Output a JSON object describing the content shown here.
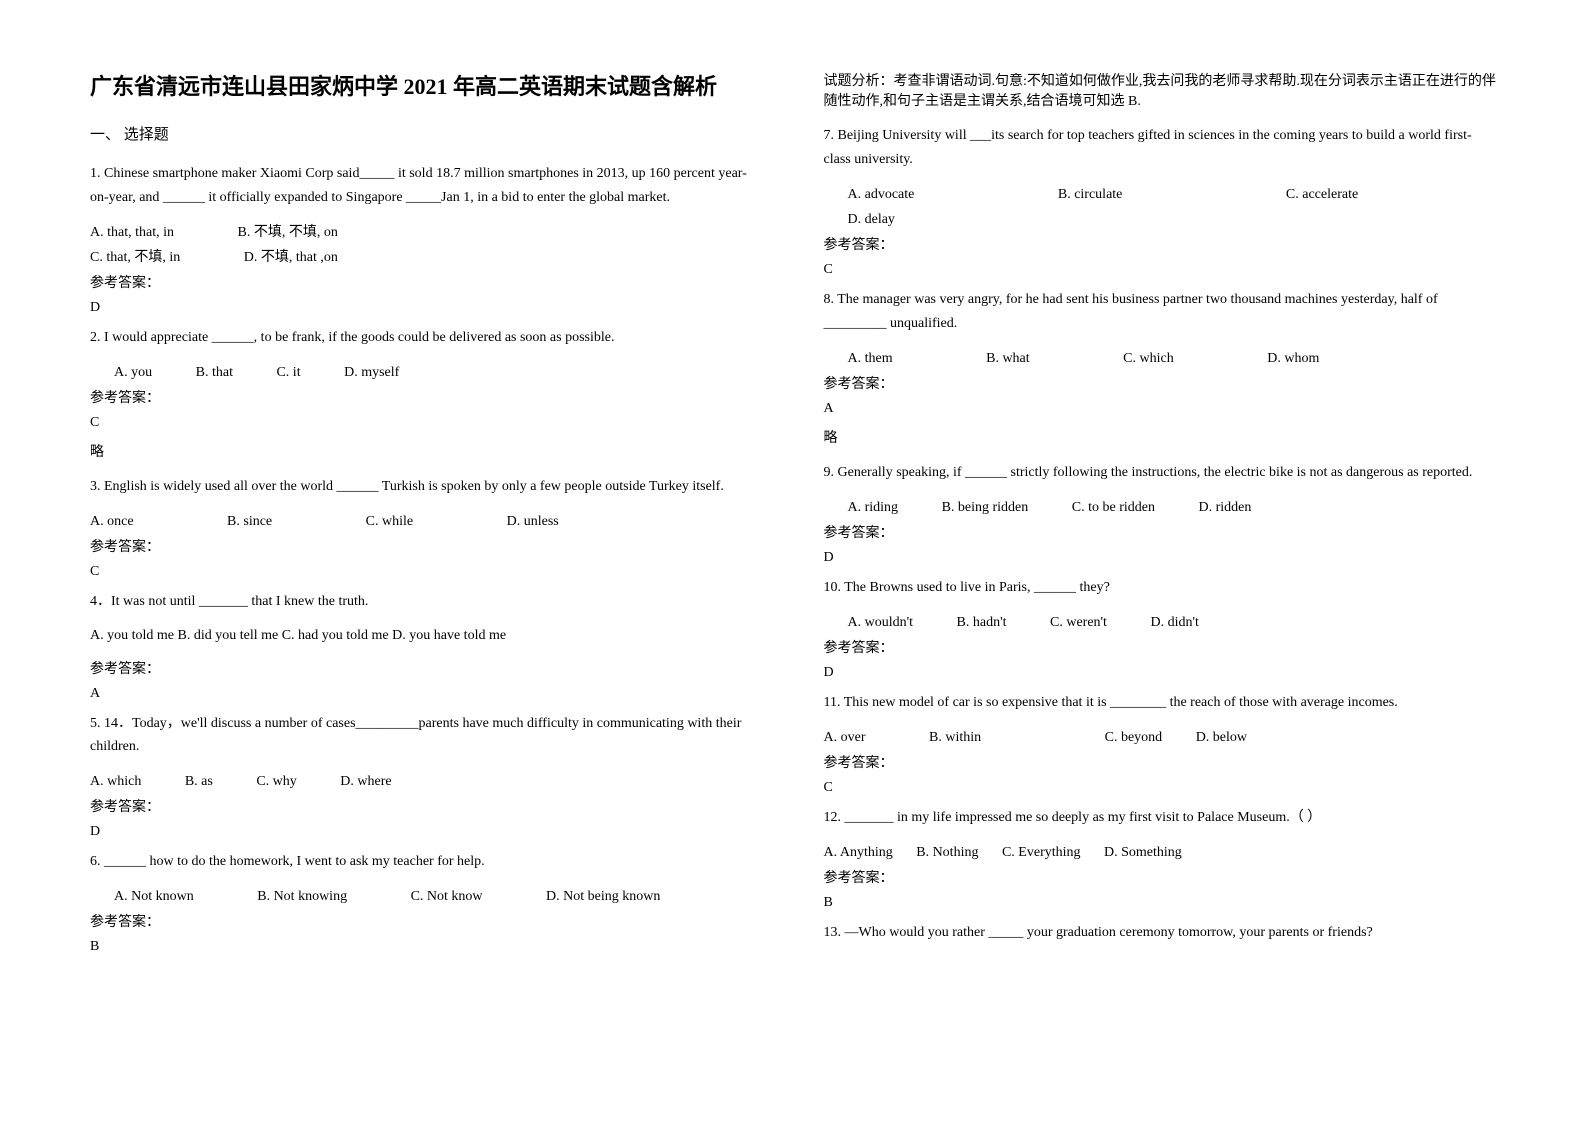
{
  "left": {
    "title": "广东省清远市连山县田家炳中学 2021 年高二英语期末试题含解析",
    "section": "一、 选择题",
    "q1_text": "1. Chinese smartphone maker Xiaomi Corp said_____ it sold 18.7 million smartphones in 2013, up 160 percent year-on-year, and ______ it officially expanded to Singapore _____Jan 1, in a bid to enter the global market.",
    "q1_a": "A. that, that, in",
    "q1_b": "B. 不填, 不填, on",
    "q1_c": "C. that, 不填, in",
    "q1_d": "D. 不填, that ,on",
    "ans_label": "参考答案：",
    "q1_ans": "D",
    "q2_text": "2.        I would appreciate ______, to be frank, if the goods could be delivered as soon as possible.",
    "q2_a": "A. you",
    "q2_b": "B. that",
    "q2_c": "C. it",
    "q2_d": "D. myself",
    "q2_ans": "C",
    "q2_note": "略",
    "q3_text": "3. English is widely used all over the world ______ Turkish is spoken by only a few people outside Turkey itself.",
    "q3_a": "A. once",
    "q3_b": "B. since",
    "q3_c": "C. while",
    "q3_d": "D. unless",
    "q3_ans": "C",
    "q4_text": "4．It was not until _______ that I knew the truth.",
    "q4_opts": "A. you told me   B. did you tell me   C. had you told me   D. you have told me",
    "q4_ans": "A",
    "q5_text": "5. 14．Today，we'll discuss a number of cases_________parents have much difficulty in communicating with their children.",
    "q5_a": "A. which",
    "q5_b": "B. as",
    "q5_c": "C. why",
    "q5_d": "D. where",
    "q5_ans": "D",
    "q6_text": "6. ______ how to do the homework, I went to ask my teacher for help.",
    "q6_a": "A. Not known",
    "q6_b": "B. Not knowing",
    "q6_c": "C. Not know",
    "q6_d": "D. Not being known",
    "q6_ans": "B"
  },
  "right": {
    "analysis": "试题分析：考查非谓语动词.句意:不知道如何做作业,我去问我的老师寻求帮助.现在分词表示主语正在进行的伴随性动作,和句子主语是主谓关系,结合语境可知选 B.",
    "q7_text": "7. Beijing University will ___its search for top teachers gifted in sciences in the coming years to build a world first-class university.",
    "q7_a": "A. advocate",
    "q7_b": "B. circulate",
    "q7_c": "C. accelerate",
    "q7_d": "D. delay",
    "ans_label": "参考答案：",
    "q7_ans": "C",
    "q8_text": "8. The manager was very angry, for he had sent his business partner two thousand machines yesterday, half of _________ unqualified.",
    "q8_a": "A. them",
    "q8_b": "B. what",
    "q8_c": "C. which",
    "q8_d": "D. whom",
    "q8_ans": "A",
    "q8_note": "略",
    "q9_text": "9. Generally speaking, if ______ strictly following the instructions, the electric bike is not as dangerous as reported.",
    "q9_a": "A. riding",
    "q9_b": "B. being ridden",
    "q9_c": "C. to be ridden",
    "q9_d": "D. ridden",
    "q9_ans": "D",
    "q10_text": "10. The Browns used to live in Paris, ______ they?",
    "q10_a": "A. wouldn't",
    "q10_b": "B. hadn't",
    "q10_c": "C. weren't",
    "q10_d": "D. didn't",
    "q10_ans": "D",
    "q11_text": "11. This new model of car is so expensive that it is ________ the reach of those with average incomes.",
    "q11_a": "A. over",
    "q11_b": "B. within",
    "q11_c": "C. beyond",
    "q11_d": "D. below",
    "q11_ans": "C",
    "q12_text": "12. _______ in my life impressed me so deeply as my first visit to Palace Museum.（    ）",
    "q12_a": "A. Anything",
    "q12_b": "B. Nothing",
    "q12_c": "C. Everything",
    "q12_d": "D. Something",
    "q12_ans": "B",
    "q13_text": "13. —Who would you rather _____ your graduation ceremony tomorrow, your parents or friends?"
  }
}
